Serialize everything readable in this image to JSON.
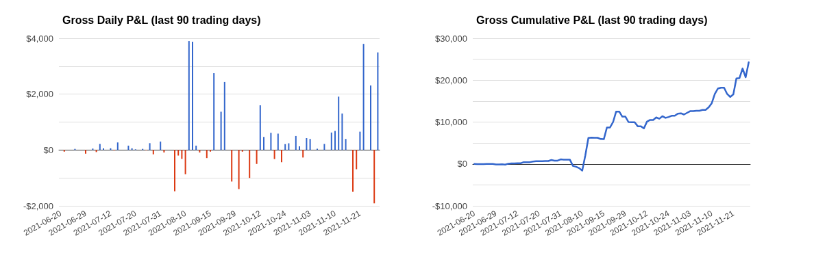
{
  "chart_data": [
    {
      "type": "bar",
      "title": "Gross Daily P&L (last 90 trading days)",
      "categories": [
        "2021-06-20",
        null,
        null,
        null,
        null,
        null,
        null,
        "2021-06-29",
        null,
        null,
        null,
        null,
        null,
        null,
        "2021-07-12",
        null,
        null,
        null,
        null,
        null,
        null,
        "2021-07-20",
        null,
        null,
        null,
        null,
        null,
        null,
        "2021-07-31",
        null,
        null,
        null,
        null,
        null,
        null,
        "2021-08-10",
        null,
        null,
        null,
        null,
        null,
        null,
        "2021-09-15",
        null,
        null,
        null,
        null,
        null,
        null,
        "2021-09-29",
        null,
        null,
        null,
        null,
        null,
        null,
        "2021-10-12",
        null,
        null,
        null,
        null,
        null,
        null,
        "2021-10-24",
        null,
        null,
        null,
        null,
        null,
        null,
        "2021-11-03",
        null,
        null,
        null,
        null,
        null,
        null,
        "2021-11-10",
        null,
        null,
        null,
        null,
        null,
        null,
        "2021-11-21",
        null,
        null,
        null,
        null,
        null
      ],
      "values": [
        0,
        -60,
        0,
        0,
        40,
        null,
        0,
        -130,
        0,
        50,
        -75,
        215,
        60,
        0,
        60,
        -20,
        270,
        0,
        0,
        155,
        60,
        25,
        0,
        40,
        -15,
        245,
        -155,
        null,
        300,
        -90,
        0,
        0,
        -1480,
        -200,
        -320,
        -870,
        3900,
        3880,
        155,
        -90,
        0,
        -290,
        -60,
        2750,
        0,
        1370,
        2435,
        0,
        -1130,
        0,
        -1400,
        -60,
        0,
        -1000,
        0,
        -500,
        1600,
        470,
        0,
        615,
        -325,
        585,
        -440,
        210,
        240,
        null,
        500,
        130,
        -270,
        425,
        395,
        0,
        45,
        0,
        215,
        0,
        625,
        680,
        1910,
        1305,
        395,
        0,
        -1500,
        -690,
        655,
        3800,
        0,
        2310,
        -1910,
        3495
      ],
      "colors": [
        "#3366cc",
        "#dc3912",
        "#3366cc",
        "#3366cc",
        "#3366cc",
        "#3366cc",
        "#3366cc",
        "#dc3912",
        "#3366cc",
        "#3366cc",
        "#dc3912",
        "#3366cc",
        "#3366cc",
        "#3366cc",
        "#3366cc",
        "#dc3912",
        "#3366cc",
        "#3366cc",
        "#3366cc",
        "#3366cc",
        "#3366cc",
        "#3366cc",
        "#3366cc",
        "#3366cc",
        "#dc3912",
        "#3366cc",
        "#dc3912",
        "#3366cc",
        "#3366cc",
        "#dc3912",
        "#3366cc",
        "#3366cc",
        "#dc3912",
        "#dc3912",
        "#dc3912",
        "#dc3912",
        "#3366cc",
        "#3366cc",
        "#3366cc",
        "#dc3912",
        "#3366cc",
        "#dc3912",
        "#dc3912",
        "#3366cc",
        "#3366cc",
        "#3366cc",
        "#3366cc",
        "#3366cc",
        "#dc3912",
        "#3366cc",
        "#dc3912",
        "#dc3912",
        "#3366cc",
        "#dc3912",
        "#3366cc",
        "#dc3912",
        "#3366cc",
        "#3366cc",
        "#3366cc",
        "#3366cc",
        "#dc3912",
        "#3366cc",
        "#dc3912",
        "#3366cc",
        "#3366cc",
        "#3366cc",
        "#3366cc",
        "#3366cc",
        "#dc3912",
        "#3366cc",
        "#3366cc",
        "#3366cc",
        "#3366cc",
        "#3366cc",
        "#3366cc",
        "#3366cc",
        "#3366cc",
        "#3366cc",
        "#3366cc",
        "#3366cc",
        "#3366cc",
        "#3366cc",
        "#dc3912",
        "#dc3912",
        "#3366cc",
        "#3366cc",
        "#3366cc",
        "#3366cc",
        "#dc3912",
        "#3366cc"
      ],
      "ylim": [
        -2000,
        4000
      ],
      "yticks": [
        {
          "value": -2000,
          "label": "-$2,000"
        },
        {
          "value": -1000,
          "label": null
        },
        {
          "value": 0,
          "label": "$0"
        },
        {
          "value": 1000,
          "label": null
        },
        {
          "value": 2000,
          "label": "$2,000"
        },
        {
          "value": 3000,
          "label": null
        },
        {
          "value": 4000,
          "label": "$4,000"
        }
      ],
      "grid": "y"
    },
    {
      "type": "line",
      "title": "Gross Cumulative P&L (last 90 trading days)",
      "categories": [
        "2021-06-20",
        null,
        null,
        null,
        null,
        null,
        null,
        "2021-06-29",
        null,
        null,
        null,
        null,
        null,
        null,
        "2021-07-12",
        null,
        null,
        null,
        null,
        null,
        null,
        "2021-07-20",
        null,
        null,
        null,
        null,
        null,
        null,
        "2021-07-31",
        null,
        null,
        null,
        null,
        null,
        null,
        "2021-08-10",
        null,
        null,
        null,
        null,
        null,
        null,
        "2021-09-15",
        null,
        null,
        null,
        null,
        null,
        null,
        "2021-09-29",
        null,
        null,
        null,
        null,
        null,
        null,
        "2021-10-12",
        null,
        null,
        null,
        null,
        null,
        null,
        "2021-10-24",
        null,
        null,
        null,
        null,
        null,
        null,
        "2021-11-03",
        null,
        null,
        null,
        null,
        null,
        null,
        "2021-11-10",
        null,
        null,
        null,
        null,
        null,
        null,
        "2021-11-21",
        null,
        null,
        null,
        null,
        null
      ],
      "series": [
        {
          "color": "#3366cc",
          "values": [
            0,
            -60,
            -60,
            -60,
            -20,
            -5,
            -5,
            -135,
            -135,
            -85,
            -160,
            55,
            115,
            115,
            175,
            155,
            425,
            425,
            425,
            580,
            640,
            665,
            665,
            705,
            690,
            935,
            780,
            795,
            1095,
            1005,
            1005,
            1005,
            -475,
            -675,
            -995,
            -1600,
            2035,
            6200,
            6300,
            6250,
            6250,
            5950,
            5900,
            8700,
            8700,
            10000,
            12500,
            12500,
            11300,
            11300,
            10000,
            9950,
            9950,
            9000,
            9000,
            8500,
            10100,
            10500,
            10500,
            11100,
            10800,
            11400,
            11000,
            11200,
            11500,
            11500,
            12000,
            12100,
            11800,
            12200,
            12600,
            12600,
            12700,
            12700,
            12900,
            12900,
            13500,
            14500,
            16700,
            18000,
            18200,
            18200,
            16700,
            16000,
            16600,
            20400,
            20500,
            22800,
            20700,
            24300
          ]
        }
      ],
      "ylim": [
        -10000,
        30000
      ],
      "yticks": [
        {
          "value": -10000,
          "label": "-$10,000"
        },
        {
          "value": -5000,
          "label": null
        },
        {
          "value": 0,
          "label": "$0"
        },
        {
          "value": 5000,
          "label": null
        },
        {
          "value": 10000,
          "label": "$10,000"
        },
        {
          "value": 15000,
          "label": null
        },
        {
          "value": 20000,
          "label": "$20,000"
        },
        {
          "value": 25000,
          "label": null
        },
        {
          "value": 30000,
          "label": "$30,000"
        }
      ],
      "grid": "y",
      "marker": "none",
      "line_style": "solid"
    }
  ]
}
